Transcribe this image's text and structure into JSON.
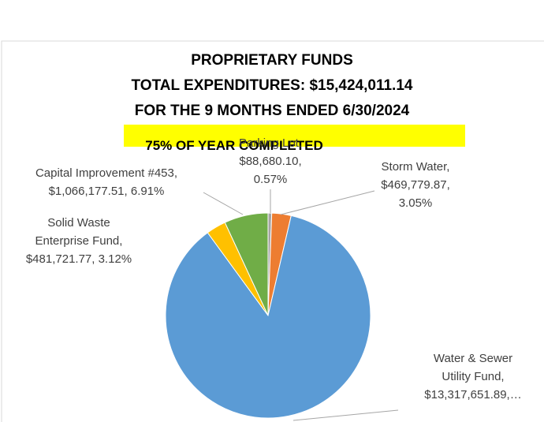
{
  "chart_data": {
    "type": "pie",
    "title": [
      "PROPRIETARY FUNDS",
      "TOTAL EXPENDITURES: $15,424,011.14",
      "FOR THE 9 MONTHS ENDED 6/30/2024"
    ],
    "subtitle": "75% OF YEAR COMPLETED",
    "categories": [
      "Parking Lot",
      "Storm Water",
      "Water & Sewer Utility Fund",
      "Solid Waste Enterprise Fund",
      "Capital Improvement #453"
    ],
    "values": [
      88680.1,
      469779.87,
      13317651.89,
      481721.77,
      1066177.51
    ],
    "colors": [
      "#a5a5a5",
      "#ed7d31",
      "#5b9bd5",
      "#ffc000",
      "#70ad47"
    ],
    "labels": [
      [
        "Parking Lot,",
        "$88,680.10,",
        "0.57%"
      ],
      [
        "Storm Water,",
        "$469,779.87,",
        "3.05%"
      ],
      [
        "Water & Sewer",
        "Utility Fund,",
        "$13,317,651.89,…"
      ],
      [
        "Solid Waste",
        "Enterprise Fund,",
        "$481,721.77, 3.12%"
      ],
      [
        "Capital Improvement #453,",
        "$1,066,177.51, 6.91%"
      ]
    ]
  }
}
